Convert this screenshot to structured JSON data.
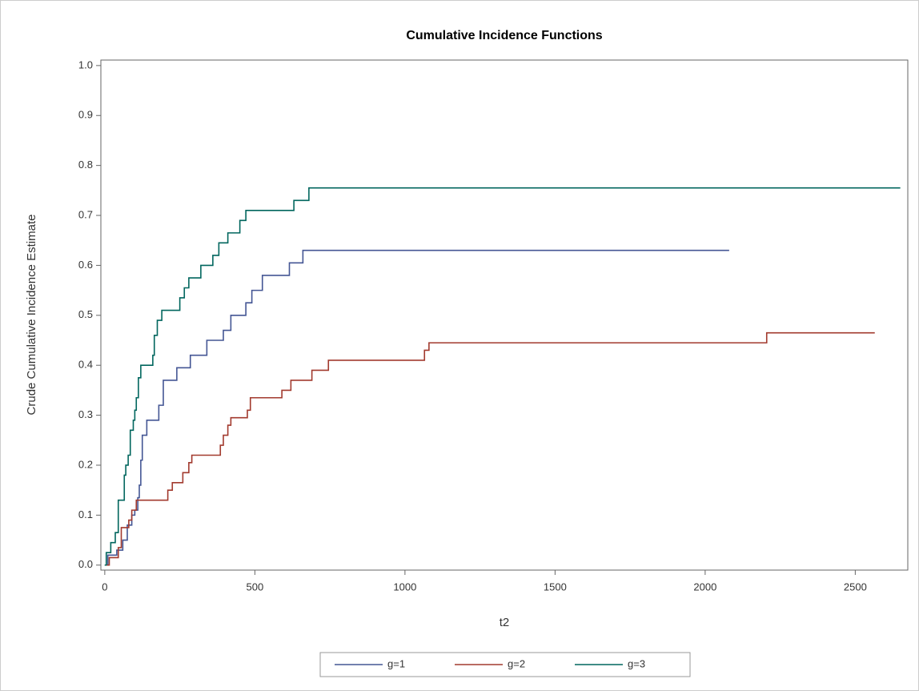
{
  "chart_data": {
    "type": "line",
    "step": true,
    "title": "Cumulative Incidence Functions",
    "x_label": "t2",
    "y_label": "Crude Cumulative Incidence Estimate",
    "xlim": [
      -13,
      2675
    ],
    "ylim": [
      -0.01,
      1.011
    ],
    "xticks": [
      0,
      500,
      1000,
      1500,
      2000,
      2500
    ],
    "yticks": [
      {
        "value": 0,
        "label": "0.0"
      },
      0.1,
      0.2,
      0.3,
      0.4,
      0.5,
      0.6,
      0.7,
      0.8,
      0.9,
      {
        "value": 1,
        "label": "1.0"
      }
    ],
    "grid": false,
    "legend": "bottom",
    "series": [
      {
        "name": "g=1",
        "color": "#445694",
        "x": [
          0,
          10,
          40,
          60,
          75,
          90,
          100,
          110,
          115,
          120,
          125,
          140,
          180,
          195,
          240,
          285,
          340,
          395,
          420,
          470,
          490,
          525,
          615,
          660,
          2080
        ],
        "values": [
          0,
          0.02,
          0.03,
          0.05,
          0.08,
          0.1,
          0.11,
          0.135,
          0.16,
          0.21,
          0.26,
          0.29,
          0.32,
          0.37,
          0.395,
          0.42,
          0.45,
          0.47,
          0.5,
          0.525,
          0.55,
          0.58,
          0.605,
          0.63,
          0.63
        ]
      },
      {
        "name": "g=2",
        "color": "#A23A2E",
        "x": [
          0,
          15,
          45,
          55,
          80,
          90,
          105,
          210,
          225,
          260,
          280,
          290,
          385,
          395,
          410,
          420,
          475,
          485,
          590,
          620,
          690,
          745,
          1065,
          1080,
          2205,
          2565
        ],
        "values": [
          0,
          0.015,
          0.035,
          0.075,
          0.09,
          0.11,
          0.13,
          0.15,
          0.165,
          0.185,
          0.205,
          0.22,
          0.24,
          0.26,
          0.28,
          0.295,
          0.31,
          0.335,
          0.35,
          0.37,
          0.39,
          0.41,
          0.43,
          0.445,
          0.465,
          0.465
        ]
      },
      {
        "name": "g=3",
        "color": "#01665E",
        "x": [
          0,
          5,
          20,
          35,
          45,
          65,
          70,
          78,
          85,
          95,
          100,
          105,
          112,
          120,
          160,
          165,
          175,
          190,
          250,
          265,
          280,
          320,
          360,
          380,
          410,
          450,
          470,
          630,
          680,
          2650
        ],
        "values": [
          0,
          0.025,
          0.045,
          0.065,
          0.13,
          0.18,
          0.2,
          0.22,
          0.27,
          0.29,
          0.31,
          0.335,
          0.375,
          0.4,
          0.42,
          0.46,
          0.49,
          0.51,
          0.535,
          0.555,
          0.575,
          0.6,
          0.62,
          0.645,
          0.665,
          0.69,
          0.71,
          0.73,
          0.755,
          0.755
        ]
      }
    ]
  }
}
